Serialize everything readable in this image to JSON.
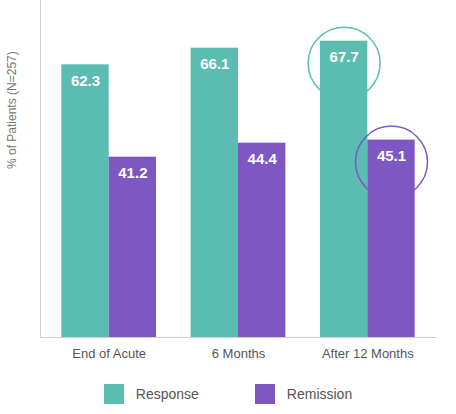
{
  "chart_data": {
    "type": "bar",
    "categories": [
      "End of Acute",
      "6 Months",
      "After 12 Months"
    ],
    "series": [
      {
        "name": "Response",
        "color": "#5bbcb2",
        "values": [
          62.3,
          66.1,
          67.7
        ]
      },
      {
        "name": "Remission",
        "color": "#7e57c2",
        "values": [
          41.2,
          44.4,
          45.1
        ]
      }
    ],
    "y_label": "% of Patients (N=257)",
    "ylim": [
      0,
      77
    ],
    "yticks": [],
    "tick_labels": "x",
    "data_labels": true,
    "legend": "bottom"
  }
}
